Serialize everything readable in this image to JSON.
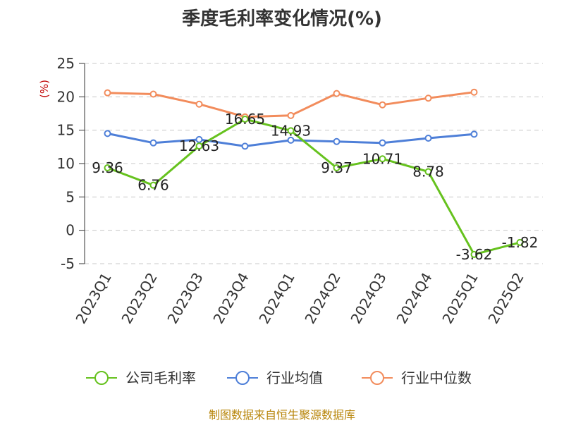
{
  "title": "季度毛利率变化情况(%)",
  "source": "制图数据来自恒生聚源数据库",
  "chart_data": {
    "type": "line",
    "ylabel": "(%)",
    "ylim": [
      -5,
      25
    ],
    "yticks": [
      25,
      20,
      15,
      10,
      5,
      0,
      -5
    ],
    "grid": true,
    "legend_position": "bottom",
    "categories": [
      "2023Q1",
      "2023Q2",
      "2023Q3",
      "2023Q4",
      "2024Q1",
      "2024Q2",
      "2024Q3",
      "2024Q4",
      "2025Q1",
      "2025Q2"
    ],
    "series": [
      {
        "name": "公司毛利率",
        "color": "#66c21e",
        "values": [
          9.36,
          6.76,
          12.63,
          16.65,
          14.93,
          9.37,
          10.71,
          8.78,
          -3.62,
          -1.82
        ],
        "labels": [
          "9.36",
          "6.76",
          "12.63",
          "16.65",
          "14.93",
          "9.37",
          "10.71",
          "8.78",
          "-3.62",
          "-1.82"
        ]
      },
      {
        "name": "行业均值",
        "color": "#4e7fd8",
        "values": [
          14.5,
          13.1,
          13.6,
          12.6,
          13.5,
          13.3,
          13.1,
          13.8,
          14.4,
          null
        ]
      },
      {
        "name": "行业中位数",
        "color": "#f28c5c",
        "values": [
          20.6,
          20.4,
          18.9,
          17.0,
          17.2,
          20.5,
          18.8,
          19.8,
          20.7,
          null
        ]
      }
    ]
  }
}
